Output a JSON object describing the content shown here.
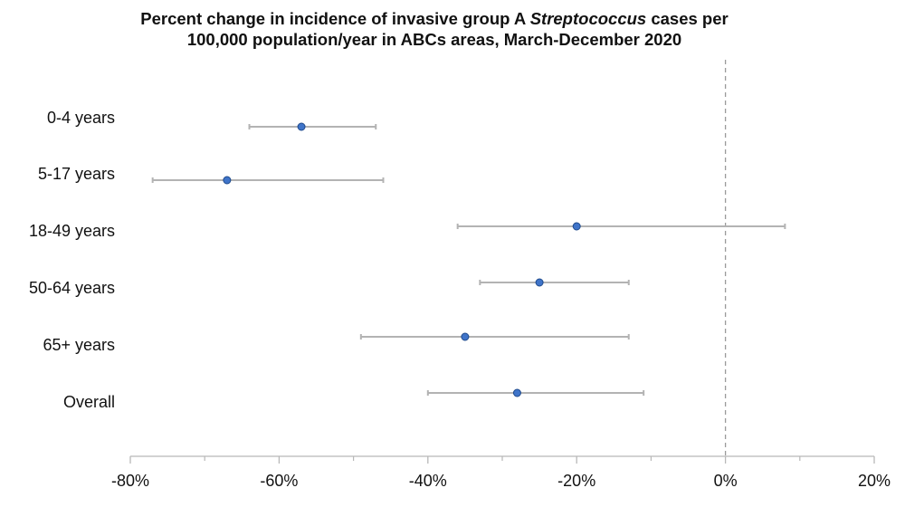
{
  "chart_data": {
    "type": "forest",
    "title_parts": [
      "Percent change in incidence of invasive group A ",
      "Streptococcus",
      " cases per",
      "100,000 population/year in ABCs areas, March-December 2020"
    ],
    "title": "Percent change in incidence of invasive group A Streptococcus cases per 100,000 population/year in ABCs areas, March-December 2020",
    "categories": [
      "0-4 years",
      "5-17 years",
      "18-49 years",
      "50-64 years",
      "65+ years",
      "Overall"
    ],
    "estimates": [
      -57,
      -67,
      -20,
      -25,
      -35,
      -28
    ],
    "ci_lower": [
      -64,
      -77,
      -36,
      -33,
      -49,
      -40
    ],
    "ci_upper": [
      -47,
      -46,
      8,
      -13,
      -13,
      -11
    ],
    "xlim": [
      -80,
      20
    ],
    "xticks": [
      -80,
      -60,
      -40,
      -20,
      0,
      20
    ],
    "xtick_labels": [
      "-80%",
      "-60%",
      "-40%",
      "-20%",
      "0%",
      "20%"
    ],
    "reference_line": 0,
    "colors": {
      "point": "#3f74c9",
      "point_edge": "#1f4a8c",
      "interval": "#b3b3b3",
      "axis": "#b8b8b8",
      "reference": "#9a9a9a"
    }
  }
}
